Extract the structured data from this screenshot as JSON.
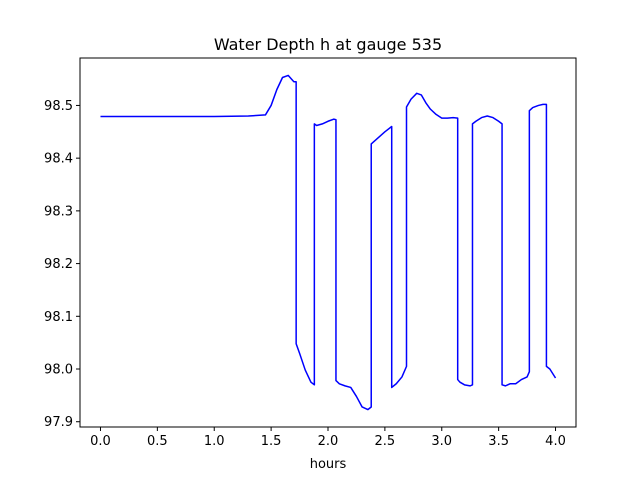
{
  "chart_data": {
    "type": "line",
    "title": "Water Depth h at gauge 535",
    "xlabel": "hours",
    "ylabel": "",
    "xlim": [
      -0.18,
      4.18
    ],
    "ylim": [
      97.89,
      98.59
    ],
    "xticks": [
      0.0,
      0.5,
      1.0,
      1.5,
      2.0,
      2.5,
      3.0,
      3.5,
      4.0
    ],
    "xtick_labels": [
      "0.0",
      "0.5",
      "1.0",
      "1.5",
      "2.0",
      "2.5",
      "3.0",
      "3.5",
      "4.0"
    ],
    "yticks": [
      97.9,
      98.0,
      98.1,
      98.2,
      98.3,
      98.4,
      98.5
    ],
    "ytick_labels": [
      "97.9",
      "98.0",
      "98.1",
      "98.2",
      "98.3",
      "98.4",
      "98.5"
    ],
    "grid": false,
    "legend": "none",
    "series": [
      {
        "color": "#0000ff",
        "x": [
          0.0,
          0.5,
          1.0,
          1.3,
          1.45,
          1.5,
          1.55,
          1.6,
          1.65,
          1.7,
          1.72,
          1.72,
          1.75,
          1.8,
          1.85,
          1.88,
          1.88,
          1.9,
          1.95,
          2.0,
          2.05,
          2.07,
          2.07,
          2.1,
          2.15,
          2.2,
          2.25,
          2.3,
          2.35,
          2.38,
          2.38,
          2.38,
          2.5,
          2.56,
          2.56,
          2.6,
          2.65,
          2.69,
          2.69,
          2.73,
          2.78,
          2.82,
          2.86,
          2.9,
          2.95,
          3.0,
          3.05,
          3.1,
          3.14,
          3.14,
          3.16,
          3.2,
          3.25,
          3.27,
          3.27,
          3.3,
          3.35,
          3.4,
          3.45,
          3.5,
          3.53,
          3.53,
          3.56,
          3.6,
          3.65,
          3.7,
          3.75,
          3.77,
          3.77,
          3.8,
          3.85,
          3.89,
          3.92,
          3.92,
          3.95,
          4.0
        ],
        "y": [
          98.479,
          98.479,
          98.479,
          98.48,
          98.482,
          98.5,
          98.53,
          98.553,
          98.557,
          98.545,
          98.545,
          98.048,
          98.03,
          97.998,
          97.975,
          97.97,
          98.465,
          98.462,
          98.465,
          98.47,
          98.474,
          98.473,
          97.978,
          97.972,
          97.968,
          97.965,
          97.948,
          97.928,
          97.923,
          97.928,
          97.93,
          98.427,
          98.45,
          98.46,
          97.965,
          97.972,
          97.985,
          98.005,
          98.497,
          98.512,
          98.523,
          98.52,
          98.505,
          98.493,
          98.483,
          98.476,
          98.476,
          98.477,
          98.476,
          97.98,
          97.975,
          97.97,
          97.968,
          97.97,
          98.465,
          98.47,
          98.477,
          98.48,
          98.477,
          98.47,
          98.465,
          97.97,
          97.968,
          97.972,
          97.972,
          97.98,
          97.985,
          97.995,
          98.49,
          98.496,
          98.5,
          98.502,
          98.502,
          98.005,
          98.0,
          97.983
        ]
      }
    ]
  }
}
